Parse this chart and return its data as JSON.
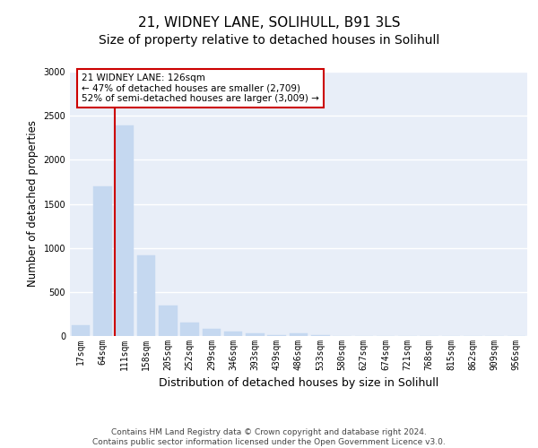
{
  "title_line1": "21, WIDNEY LANE, SOLIHULL, B91 3LS",
  "title_line2": "Size of property relative to detached houses in Solihull",
  "xlabel": "Distribution of detached houses by size in Solihull",
  "ylabel": "Number of detached properties",
  "categories": [
    "17sqm",
    "64sqm",
    "111sqm",
    "158sqm",
    "205sqm",
    "252sqm",
    "299sqm",
    "346sqm",
    "393sqm",
    "439sqm",
    "486sqm",
    "533sqm",
    "580sqm",
    "627sqm",
    "674sqm",
    "721sqm",
    "768sqm",
    "815sqm",
    "862sqm",
    "909sqm",
    "956sqm"
  ],
  "bar_heights": [
    120,
    1700,
    2390,
    920,
    350,
    150,
    80,
    55,
    35,
    10,
    35,
    10,
    5,
    0,
    0,
    0,
    0,
    0,
    0,
    0,
    0
  ],
  "bar_color": "#c5d8f0",
  "bar_edge_color": "#c5d8f0",
  "vline_x_index": 2,
  "vline_color": "#cc0000",
  "annotation_line1": "21 WIDNEY LANE: 126sqm",
  "annotation_line2": "← 47% of detached houses are smaller (2,709)",
  "annotation_line3": "52% of semi-detached houses are larger (3,009) →",
  "annotation_box_color": "#cc0000",
  "ylim": [
    0,
    3000
  ],
  "yticks": [
    0,
    500,
    1000,
    1500,
    2000,
    2500,
    3000
  ],
  "background_color": "#e8eef8",
  "grid_color": "#ffffff",
  "footer_text": "Contains HM Land Registry data © Crown copyright and database right 2024.\nContains public sector information licensed under the Open Government Licence v3.0.",
  "title_fontsize": 11,
  "subtitle_fontsize": 10,
  "tick_fontsize": 7,
  "ylabel_fontsize": 8.5,
  "xlabel_fontsize": 9,
  "footer_fontsize": 6.5
}
